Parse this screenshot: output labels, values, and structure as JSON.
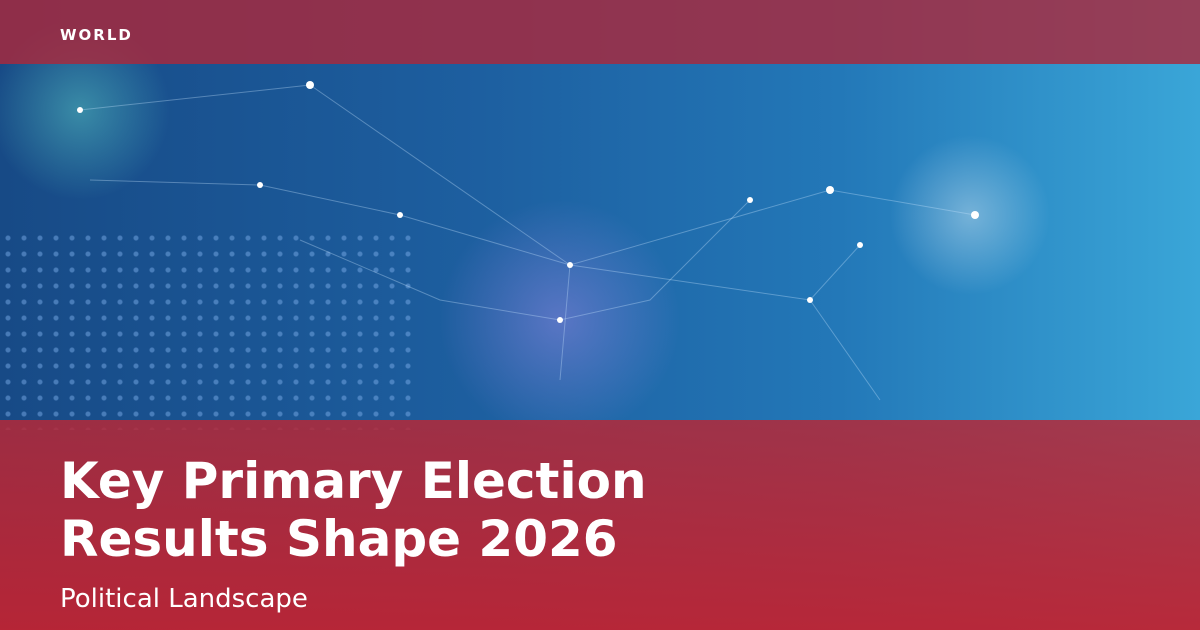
{
  "header": {
    "category": "WORLD"
  },
  "article": {
    "title": "Key Primary Election Results Shape 2026",
    "subtitle": "Political Landscape"
  },
  "colors": {
    "band": "#b0283c",
    "map": "#1d5fa0"
  },
  "background": {
    "image": "world-network-map"
  }
}
